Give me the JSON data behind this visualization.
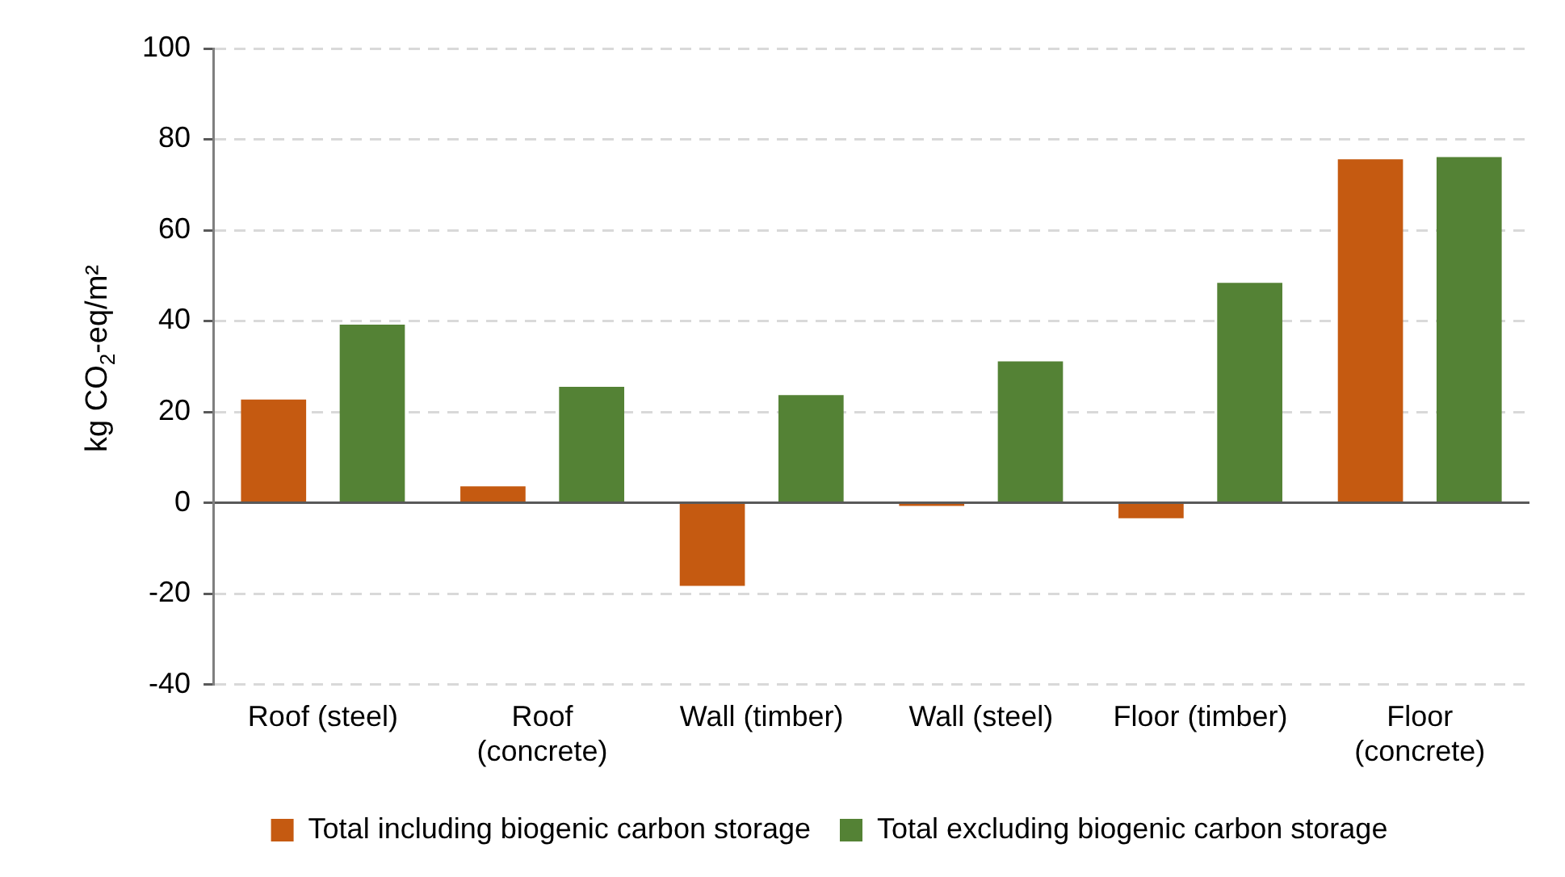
{
  "chart_data": {
    "type": "bar",
    "ylabel": "kg CO$_{2}$-eq/m²",
    "categories": [
      "Roof (steel)",
      "Roof (concrete)",
      "Wall (timber)",
      "Wall (steel)",
      "Floor (timber)",
      "Floor (concrete)"
    ],
    "series": [
      {
        "name": "Total including biogenic carbon storage",
        "color": "#c55a11",
        "values": [
          22.7,
          3.6,
          -18.3,
          -0.2,
          -3.4,
          75.6
        ]
      },
      {
        "name": "Total excluding biogenic carbon storage",
        "color": "#548235",
        "values": [
          39.2,
          25.5,
          23.7,
          31.1,
          48.4,
          76.1
        ]
      }
    ],
    "ylim": [
      -40,
      100
    ],
    "yticks": [
      -40,
      -20,
      0,
      20,
      40,
      60,
      80,
      100
    ],
    "grid": "y",
    "legend": "bottom"
  }
}
